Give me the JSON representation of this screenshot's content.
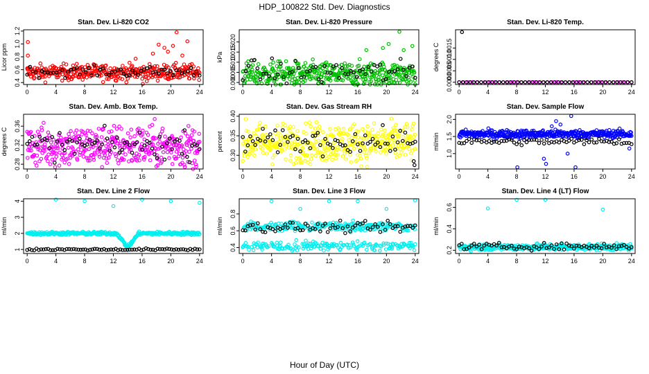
{
  "figure": {
    "title": "HDP_100822  Std. Dev. Diagnostics",
    "xlabel": "Hour of Day (UTC)"
  },
  "chart_data": [
    {
      "type": "scatter",
      "title": "Stan. Dev. Li-820 CO2",
      "ylabel": "Licor ppm",
      "xlim": [
        -0.5,
        24.5
      ],
      "ylim": [
        0.37,
        1.22
      ],
      "xticks": [
        0,
        4,
        8,
        12,
        16,
        20,
        24
      ],
      "yticks": [
        0.4,
        0.6,
        0.8,
        1.0,
        1.2
      ],
      "ytick_labels": [
        "0.4",
        "0.6",
        "0.8",
        "1.0",
        "1.2"
      ],
      "series": [
        {
          "name": "main",
          "color": "#ff0000",
          "n": 380,
          "base": 0.56,
          "spread": 0.06,
          "outliers": [
            [
              0.1,
              1.03
            ],
            [
              0.1,
              0.82
            ],
            [
              16.1,
              0.38
            ],
            [
              18.3,
              0.99
            ],
            [
              19.1,
              0.94
            ],
            [
              19.6,
              0.88
            ],
            [
              20.3,
              0.97
            ],
            [
              20.8,
              1.18
            ],
            [
              21.6,
              0.82
            ],
            [
              22.3,
              1.04
            ],
            [
              15.1,
              0.77
            ],
            [
              17.5,
              0.85
            ]
          ]
        },
        {
          "name": "secondary",
          "color": "#000000",
          "n": 60,
          "base": 0.57,
          "spread": 0.04,
          "outliers": []
        }
      ]
    },
    {
      "type": "scatter",
      "title": "Stan. Dev. Li-820 Pressure",
      "ylabel": "kPa",
      "xlim": [
        -0.5,
        24.5
      ],
      "ylim": [
        -0.001,
        0.026
      ],
      "xticks": [
        0,
        4,
        8,
        12,
        16,
        20,
        24
      ],
      "yticks": [
        0.0,
        0.005,
        0.01,
        0.015,
        0.02
      ],
      "ytick_labels": [
        "0.000",
        "0.005",
        "0.010",
        "0.015",
        "0.020"
      ],
      "series": [
        {
          "name": "main",
          "color": "#00c000",
          "n": 420,
          "base": 0.004,
          "spread": 0.003,
          "outliers": [
            [
              17.2,
              0.016
            ],
            [
              19.5,
              0.017
            ],
            [
              20.3,
              0.019
            ],
            [
              21.8,
              0.025
            ],
            [
              22.4,
              0.016
            ],
            [
              23.6,
              0.018
            ]
          ]
        },
        {
          "name": "secondary",
          "color": "#000000",
          "n": 60,
          "base": 0.005,
          "spread": 0.003,
          "outliers": []
        }
      ]
    },
    {
      "type": "scatter",
      "title": "Stan. Dev. Li-820 Temp.",
      "ylabel": "degrees C",
      "xlim": [
        -0.5,
        24.5
      ],
      "ylim": [
        -0.0001,
        0.0023
      ],
      "xticks": [
        0,
        4,
        8,
        12,
        16,
        20,
        24
      ],
      "yticks": [
        0.0,
        0.0005,
        0.001,
        0.0015
      ],
      "ytick_labels": [
        "0.0000",
        "0.0005",
        "0.0010",
        "0.0015"
      ],
      "series": [
        {
          "name": "main",
          "color": "#ff00ff",
          "n": 40,
          "base": 0.0,
          "spread": 0.0,
          "outliers": []
        },
        {
          "name": "secondary",
          "color": "#000000",
          "n": 48,
          "base": 0.0,
          "spread": 0.0,
          "outliers": [
            [
              0.4,
              0.0022
            ]
          ]
        }
      ]
    },
    {
      "type": "scatter",
      "title": "Stan. Dev. Amb. Box Temp.",
      "ylabel": "degrees C",
      "xlim": [
        -0.5,
        24.5
      ],
      "ylim": [
        0.27,
        0.385
      ],
      "xticks": [
        0,
        4,
        8,
        12,
        16,
        20,
        24
      ],
      "yticks": [
        0.28,
        0.3,
        0.32,
        0.34,
        0.36
      ],
      "ytick_labels": [
        "0.28",
        "",
        "0.32",
        "",
        "0.36"
      ],
      "series": [
        {
          "name": "main",
          "color": "#ff00ff",
          "n": 420,
          "base": 0.318,
          "spread": 0.022,
          "outliers": []
        },
        {
          "name": "secondary",
          "color": "#000000",
          "n": 70,
          "base": 0.32,
          "spread": 0.014,
          "outliers": []
        }
      ]
    },
    {
      "type": "scatter",
      "title": "Stan. Dev. Gas Stream RH",
      "ylabel": "percent",
      "xlim": [
        -0.5,
        24.5
      ],
      "ylim": [
        0.265,
        0.405
      ],
      "xticks": [
        0,
        4,
        8,
        12,
        16,
        20,
        24
      ],
      "yticks": [
        0.3,
        0.35,
        0.4
      ],
      "ytick_labels": [
        "0.30",
        "0.35",
        "0.40"
      ],
      "series": [
        {
          "name": "main",
          "color": "#ffff00",
          "n": 420,
          "base": 0.332,
          "spread": 0.025,
          "outliers": []
        },
        {
          "name": "secondary",
          "color": "#000000",
          "n": 70,
          "base": 0.335,
          "spread": 0.015,
          "outliers": [
            [
              23.8,
              0.285
            ],
            [
              23.9,
              0.275
            ]
          ]
        }
      ]
    },
    {
      "type": "scatter",
      "title": "Stan. Dev. Sample Flow",
      "ylabel": "ml/min",
      "xlim": [
        -0.5,
        24.5
      ],
      "ylim": [
        0.55,
        2.15
      ],
      "xticks": [
        0,
        4,
        8,
        12,
        16,
        20,
        24
      ],
      "yticks": [
        1.0,
        1.5,
        2.0
      ],
      "ytick_labels": [
        "1.0",
        "1.5",
        "2.0"
      ],
      "series": [
        {
          "name": "main",
          "color": "#0000ff",
          "n": 420,
          "base": 1.57,
          "spread": 0.06,
          "outliers": [
            [
              8.1,
              0.6
            ],
            [
              11.8,
              0.85
            ],
            [
              12.1,
              0.7
            ],
            [
              13.5,
              1.95
            ],
            [
              14.1,
              1.85
            ],
            [
              15.6,
              2.1
            ],
            [
              16.2,
              0.6
            ],
            [
              15.1,
              1.0
            ],
            [
              23.7,
              1.15
            ],
            [
              12.9,
              1.8
            ]
          ]
        },
        {
          "name": "secondary",
          "color": "#000000",
          "n": 70,
          "base": 1.35,
          "spread": 0.05,
          "outliers": []
        }
      ]
    },
    {
      "type": "scatter",
      "title": "Stan. Dev. Line 2 Flow",
      "ylabel": "ml/min",
      "xlim": [
        -0.5,
        24.5
      ],
      "ylim": [
        0.75,
        4.15
      ],
      "xticks": [
        0,
        4,
        8,
        12,
        16,
        20,
        24
      ],
      "yticks": [
        1,
        2,
        3,
        4
      ],
      "ytick_labels": [
        "1",
        "2",
        "3",
        "4"
      ],
      "series": [
        {
          "name": "main",
          "color": "#00f0f0",
          "n": 360,
          "base": 2.0,
          "spread": 0.05,
          "dip": [
            12.5,
            15.5,
            1.1
          ],
          "outliers": [
            [
              4.0,
              4.1
            ],
            [
              8.0,
              4.0
            ],
            [
              12.0,
              3.7
            ],
            [
              16.0,
              4.1
            ],
            [
              20.0,
              4.0
            ],
            [
              24.0,
              3.9
            ]
          ]
        },
        {
          "name": "secondary",
          "color": "#000000",
          "n": 75,
          "base": 1.0,
          "spread": 0.03,
          "outliers": []
        }
      ]
    },
    {
      "type": "scatter",
      "title": "Stan. Dev. Line 3 Flow",
      "ylabel": "ml/min",
      "xlim": [
        -0.5,
        24.5
      ],
      "ylim": [
        0.33,
        0.98
      ],
      "xticks": [
        0,
        4,
        8,
        12,
        16,
        20,
        24
      ],
      "yticks": [
        0.4,
        0.6,
        0.8
      ],
      "ytick_labels": [
        "0.4",
        "0.6",
        "0.8"
      ],
      "series": [
        {
          "name": "main",
          "color": "#00f0f0",
          "n": 420,
          "base": 0.53,
          "spread": 0.11,
          "bimodal": [
            0.42,
            0.65
          ],
          "outliers": [
            [
              4.0,
              0.95
            ],
            [
              8.0,
              0.86
            ],
            [
              12.0,
              0.95
            ],
            [
              16.0,
              0.95
            ],
            [
              20.0,
              0.86
            ],
            [
              24.0,
              0.96
            ]
          ]
        },
        {
          "name": "secondary",
          "color": "#000000",
          "n": 70,
          "base": 0.64,
          "spread": 0.03,
          "outliers": []
        }
      ]
    },
    {
      "type": "scatter",
      "title": "Stan. Dev. Line 4 (LT) Flow",
      "ylabel": "ml/min",
      "xlim": [
        -0.5,
        24.5
      ],
      "ylim": [
        0.17,
        0.68
      ],
      "xticks": [
        0,
        4,
        8,
        12,
        16,
        20,
        24
      ],
      "yticks": [
        0.2,
        0.4,
        0.6
      ],
      "ytick_labels": [
        "0.2",
        "0.4",
        "0.6"
      ],
      "series": [
        {
          "name": "main",
          "color": "#00f0f0",
          "n": 380,
          "base": 0.23,
          "spread": 0.015,
          "outliers": [
            [
              4.0,
              0.59
            ],
            [
              8.0,
              0.67
            ],
            [
              12.0,
              0.67
            ],
            [
              20.0,
              0.58
            ]
          ]
        },
        {
          "name": "secondary",
          "color": "#000000",
          "n": 70,
          "base": 0.235,
          "spread": 0.015,
          "outliers": []
        }
      ]
    }
  ]
}
